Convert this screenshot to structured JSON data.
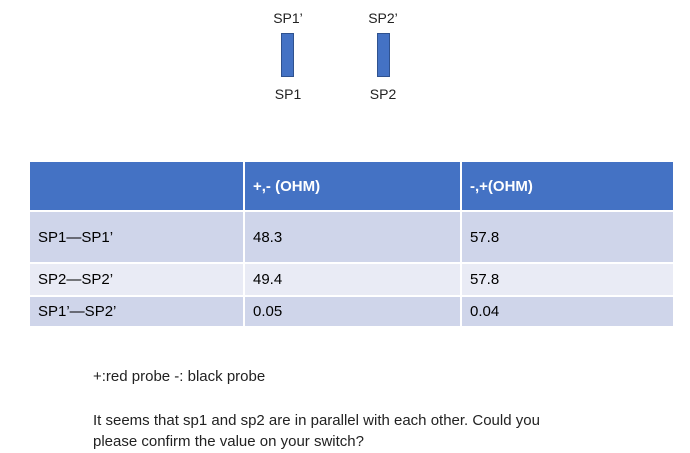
{
  "diagram": {
    "nodes": [
      {
        "top_label": "SP1’",
        "bottom_label": "SP1"
      },
      {
        "top_label": "SP2’",
        "bottom_label": "SP2"
      }
    ]
  },
  "table": {
    "header": [
      "+,- (OHM)",
      "-,+(OHM)"
    ],
    "rows": [
      {
        "label": "SP1—SP1’",
        "values": [
          48.3,
          57.8
        ]
      },
      {
        "label": "SP2—SP2’",
        "values": [
          49.4,
          57.8
        ]
      },
      {
        "label": "SP1’—SP2’",
        "values": [
          0.05,
          0.04
        ]
      }
    ]
  },
  "notes": [
    "+:red probe -: black probe",
    "It seems that sp1 and sp2 are in parallel with each other. Could you please confirm the value on your switch?"
  ]
}
